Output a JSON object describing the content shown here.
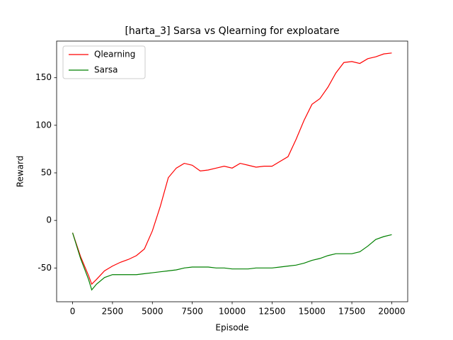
{
  "chart_data": {
    "type": "line",
    "title": "[harta_3] Sarsa vs Qlearning for exploatare",
    "x_label": "Episode",
    "y_label": "Reward",
    "x": [
      0,
      500,
      1000,
      1200,
      1500,
      2000,
      2500,
      3000,
      3500,
      4000,
      4500,
      5000,
      5500,
      6000,
      6500,
      7000,
      7500,
      8000,
      8500,
      9000,
      9500,
      10000,
      10500,
      11000,
      11500,
      12000,
      12500,
      13000,
      13500,
      14000,
      14500,
      15000,
      15500,
      16000,
      16500,
      17000,
      17500,
      18000,
      18500,
      19000,
      19500,
      20000
    ],
    "series": [
      {
        "name": "Qlearning",
        "color": "#ff0000",
        "values": [
          -13,
          -38,
          -58,
          -67,
          -62,
          -53,
          -48,
          -44,
          -41,
          -37,
          -30,
          -11,
          15,
          45,
          55,
          60,
          58,
          52,
          53,
          55,
          57,
          55,
          60,
          58,
          56,
          57,
          57,
          62,
          67,
          85,
          105,
          122,
          128,
          140,
          155,
          166,
          167,
          165,
          170,
          172,
          175,
          176
        ]
      },
      {
        "name": "Sarsa",
        "color": "#008000",
        "values": [
          -13,
          -40,
          -62,
          -73,
          -67,
          -60,
          -57,
          -57,
          -57,
          -57,
          -56,
          -55,
          -54,
          -53,
          -52,
          -50,
          -49,
          -49,
          -49,
          -50,
          -50,
          -51,
          -51,
          -51,
          -50,
          -50,
          -50,
          -49,
          -48,
          -47,
          -45,
          -42,
          -40,
          -37,
          -35,
          -35,
          -35,
          -33,
          -27,
          -20,
          -17,
          -15
        ]
      }
    ],
    "xlim": [
      -1000,
      21000
    ],
    "ylim": [
      -85.5,
      188.5
    ],
    "xticks": [
      0,
      2500,
      5000,
      7500,
      10000,
      12500,
      15000,
      17500,
      20000
    ],
    "yticks": [
      -50,
      0,
      50,
      100,
      150
    ],
    "grid": false,
    "legend": "upper left"
  }
}
